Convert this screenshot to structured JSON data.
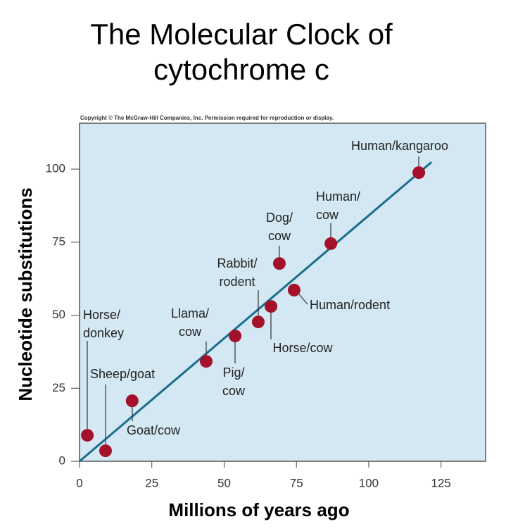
{
  "chart_data": {
    "type": "scatter",
    "title_lines": [
      "The Molecular Clock of",
      "cytochrome c"
    ],
    "copyright": "Copyright © The McGraw-Hill Companies, Inc. Permission required for reproduction or display.",
    "x_label": "Millions of years ago",
    "y_label": "Nucleotide substitutions",
    "xlim": [
      0,
      140.4
    ],
    "ylim": [
      0,
      115.7
    ],
    "xticks": [
      0,
      25,
      50,
      75,
      100,
      125
    ],
    "yticks": [
      0,
      25,
      50,
      75,
      100
    ],
    "background": "#d3e8f2",
    "point_color": "#a3122a",
    "line_color": "#1a6e8e",
    "points": [
      {
        "label": [
          "Horse/",
          "donkey"
        ],
        "x": 2.7,
        "y": 8.9
      },
      {
        "label": [
          "Sheep/goat"
        ],
        "x": 9,
        "y": 3.6
      },
      {
        "label": [
          "Goat/cow"
        ],
        "x": 18.2,
        "y": 20.7
      },
      {
        "label": [
          "Llama/",
          "cow"
        ],
        "x": 43.8,
        "y": 34.2
      },
      {
        "label": [
          "Pig/",
          "cow"
        ],
        "x": 53.8,
        "y": 42.9
      },
      {
        "label": [
          "Rabbit/",
          "rodent"
        ],
        "x": 61.8,
        "y": 47.7
      },
      {
        "label": [
          "Horse/cow"
        ],
        "x": 66.2,
        "y": 53
      },
      {
        "label": [
          "Dog/",
          "cow"
        ],
        "x": 69.1,
        "y": 67.7
      },
      {
        "label": [
          "Human/rodent"
        ],
        "x": 74.2,
        "y": 58.6
      },
      {
        "label": [
          "Human/",
          "cow"
        ],
        "x": 86.9,
        "y": 74.5
      },
      {
        "label": [
          "Human/kangaroo"
        ],
        "x": 117.3,
        "y": 98.8
      }
    ],
    "trend_line": {
      "x": [
        0,
        121.7
      ],
      "y": [
        0,
        102.4
      ]
    }
  }
}
